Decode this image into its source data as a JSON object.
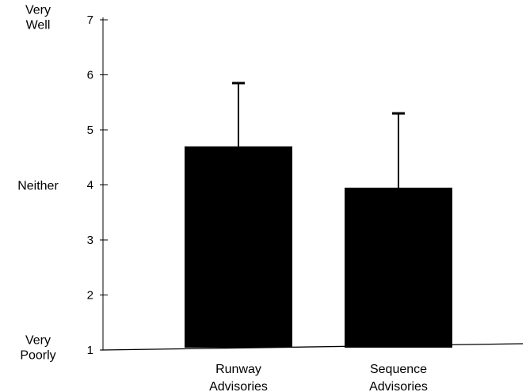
{
  "chart_data": {
    "type": "bar",
    "categories": [
      [
        "Runway",
        "Advisories"
      ],
      [
        "Sequence",
        "Advisories"
      ]
    ],
    "values": [
      4.7,
      3.95
    ],
    "error_upper": [
      5.85,
      5.3
    ],
    "ylim": [
      1,
      7
    ],
    "yticks": [
      1,
      2,
      3,
      4,
      5,
      6,
      7
    ],
    "ytick_labels": [
      "1",
      "2",
      "3",
      "4",
      "5",
      "6",
      "7"
    ],
    "anchor_labels": [
      {
        "value": 7,
        "lines": [
          "Very",
          "Well"
        ]
      },
      {
        "value": 4,
        "lines": [
          "Neither"
        ]
      },
      {
        "value": 1,
        "lines": [
          "Very",
          "Poorly"
        ]
      }
    ],
    "bar_color": "#000000",
    "grid": false,
    "legend": "none",
    "title": "",
    "xlabel": "",
    "ylabel": ""
  }
}
